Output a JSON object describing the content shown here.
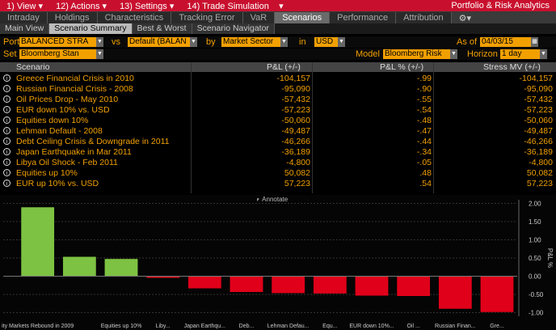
{
  "menu": {
    "items": [
      "1) View ▾",
      "12) Actions ▾",
      "13) Settings ▾",
      "14) Trade Simulation"
    ],
    "arrow": "▾",
    "app_title": "Portfolio & Risk Analytics"
  },
  "tabs": [
    "Intraday",
    "Holdings",
    "Characteristics",
    "Tracking Error",
    "VaR",
    "Scenarios",
    "Performance",
    "Attribution"
  ],
  "gear_label": "⚙▾",
  "subtabs": [
    "Main View",
    "Scenario Summary",
    "Best & Worst",
    "Scenario Navigator"
  ],
  "controls": {
    "port_label": "Port",
    "port_value": "BALANCED STRA",
    "vs_label": "vs",
    "vs_value": "Default (BALAN",
    "by_label": "by",
    "by_value": "Market Sector",
    "in_label": "in",
    "in_value": "USD",
    "asof_label": "As of",
    "asof_value": "04/03/15",
    "set_label": "Set",
    "set_value": "Bloomberg Stan",
    "model_label": "Model",
    "model_value": "Bloomberg Risk",
    "horizon_label": "Horizon",
    "horizon_value": "1 day"
  },
  "grid": {
    "headers": [
      "Scenario",
      "P&L (+/-)",
      "P&L % (+/-)",
      "Stress MV (+/-)"
    ],
    "rows": [
      {
        "name": "Greece Financial Crisis in 2010",
        "pl": "-104,157",
        "pct": "-.99",
        "mv": "-104,157"
      },
      {
        "name": "Russian Financial Crisis - 2008",
        "pl": "-95,090",
        "pct": "-.90",
        "mv": "-95,090"
      },
      {
        "name": "Oil Prices Drop - May 2010",
        "pl": "-57,432",
        "pct": "-.55",
        "mv": "-57,432"
      },
      {
        "name": "EUR down 10% vs. USD",
        "pl": "-57,223",
        "pct": "-.54",
        "mv": "-57,223"
      },
      {
        "name": "Equities down 10%",
        "pl": "-50,060",
        "pct": "-.48",
        "mv": "-50,060"
      },
      {
        "name": "Lehman Default - 2008",
        "pl": "-49,487",
        "pct": "-.47",
        "mv": "-49,487"
      },
      {
        "name": "Debt Ceiling Crisis & Downgrade in 2011",
        "pl": "-46,266",
        "pct": "-.44",
        "mv": "-46,266"
      },
      {
        "name": "Japan Earthquake in Mar 2011",
        "pl": "-36,189",
        "pct": "-.34",
        "mv": "-36,189"
      },
      {
        "name": "Libya Oil Shock - Feb 2011",
        "pl": "-4,800",
        "pct": "-.05",
        "mv": "-4,800"
      },
      {
        "name": "Equities up 10%",
        "pl": "50,082",
        "pct": ".48",
        "mv": "50,082"
      },
      {
        "name": "EUR up 10% vs. USD",
        "pl": "57,223",
        "pct": ".54",
        "mv": "57,223"
      }
    ]
  },
  "annotate_label": "⎖ Annotate",
  "chart_data": {
    "type": "bar",
    "categories": [
      "ity Markets Rebound in 2009",
      "",
      "Equities up 10%",
      "Liby...",
      "Japan Earthqu...",
      "Deb...",
      "Lehman Defau...",
      "Equ...",
      "EUR down 10%...",
      "Oil ...",
      "Russian Finan...",
      "Gre..."
    ],
    "values": [
      1.9,
      0.54,
      0.48,
      -0.05,
      -0.34,
      -0.44,
      -0.47,
      -0.48,
      -0.54,
      -0.55,
      -0.9,
      -0.99
    ],
    "ylabel": "P&L %",
    "ylim": [
      -1.1,
      2.1
    ],
    "yticks": [
      "2.00",
      "1.50",
      "1.00",
      "0.50",
      "0.00",
      "-0.50",
      "-1.00"
    ],
    "ytick_values": [
      2.0,
      1.5,
      1.0,
      0.5,
      0.0,
      -0.5,
      -1.0
    ],
    "pos_color": "#7dc242",
    "neg_color": "#e0001a"
  }
}
